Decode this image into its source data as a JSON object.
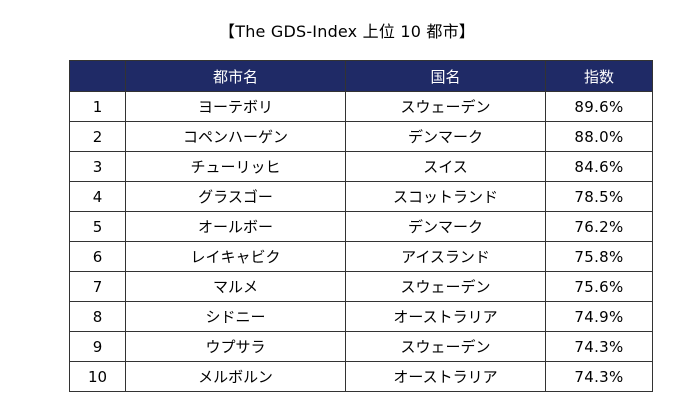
{
  "title": "【The GDS-Index 上位 10 都市】",
  "table": {
    "headers": {
      "rank": "",
      "city": "都市名",
      "country": "国名",
      "score": "指数"
    },
    "rows": [
      {
        "rank": "1",
        "city": "ヨーテボリ",
        "country": "スウェーデン",
        "score": "89.6%"
      },
      {
        "rank": "2",
        "city": "コペンハーゲン",
        "country": "デンマーク",
        "score": "88.0%"
      },
      {
        "rank": "3",
        "city": "チューリッヒ",
        "country": "スイス",
        "score": "84.6%"
      },
      {
        "rank": "4",
        "city": "グラスゴー",
        "country": "スコットランド",
        "score": "78.5%"
      },
      {
        "rank": "5",
        "city": "オールボー",
        "country": "デンマーク",
        "score": "76.2%"
      },
      {
        "rank": "6",
        "city": "レイキャビク",
        "country": "アイスランド",
        "score": "75.8%"
      },
      {
        "rank": "7",
        "city": "マルメ",
        "country": "スウェーデン",
        "score": "75.6%"
      },
      {
        "rank": "8",
        "city": "シドニー",
        "country": "オーストラリア",
        "score": "74.9%"
      },
      {
        "rank": "9",
        "city": "ウプサラ",
        "country": "スウェーデン",
        "score": "74.3%"
      },
      {
        "rank": "10",
        "city": "メルボルン",
        "country": "オーストラリア",
        "score": "74.3%"
      }
    ]
  },
  "colors": {
    "header_background": "#1f2a66",
    "header_text": "#ffffff",
    "border": "#333333"
  }
}
